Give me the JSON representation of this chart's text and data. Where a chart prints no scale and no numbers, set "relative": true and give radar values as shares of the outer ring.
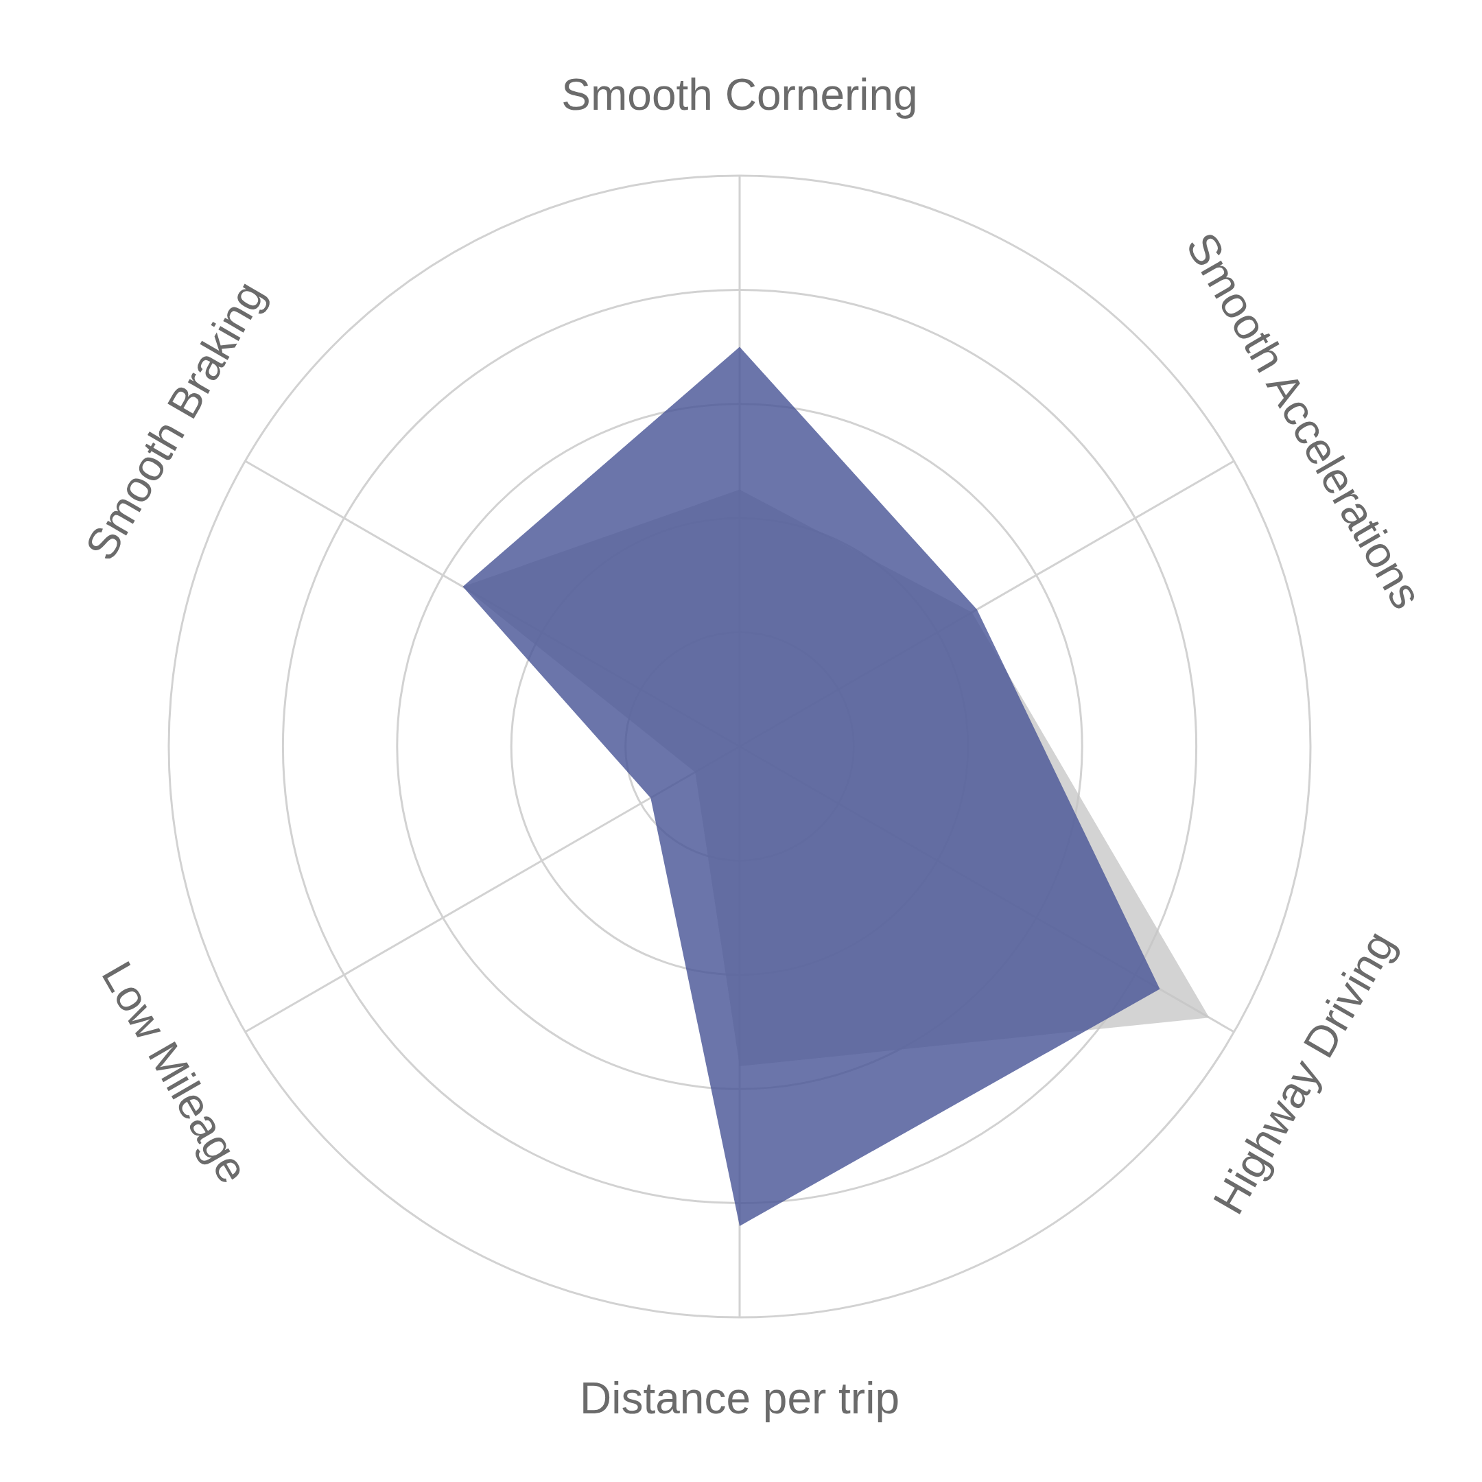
{
  "chart_data": {
    "type": "radar",
    "relative": true,
    "grid": true,
    "categories": [
      "Smooth Cornering",
      "Smooth Accelerations",
      "Highway Driving",
      "Distance per trip",
      "Low Mileage",
      "Smooth Braking"
    ],
    "series": [
      {
        "color": "#c4c4c4",
        "values": [
          0.45,
          0.47,
          0.95,
          0.56,
          0.09,
          0.56
        ]
      },
      {
        "color": "#4b5797",
        "values": [
          0.7,
          0.48,
          0.85,
          0.84,
          0.18,
          0.56
        ]
      }
    ]
  }
}
